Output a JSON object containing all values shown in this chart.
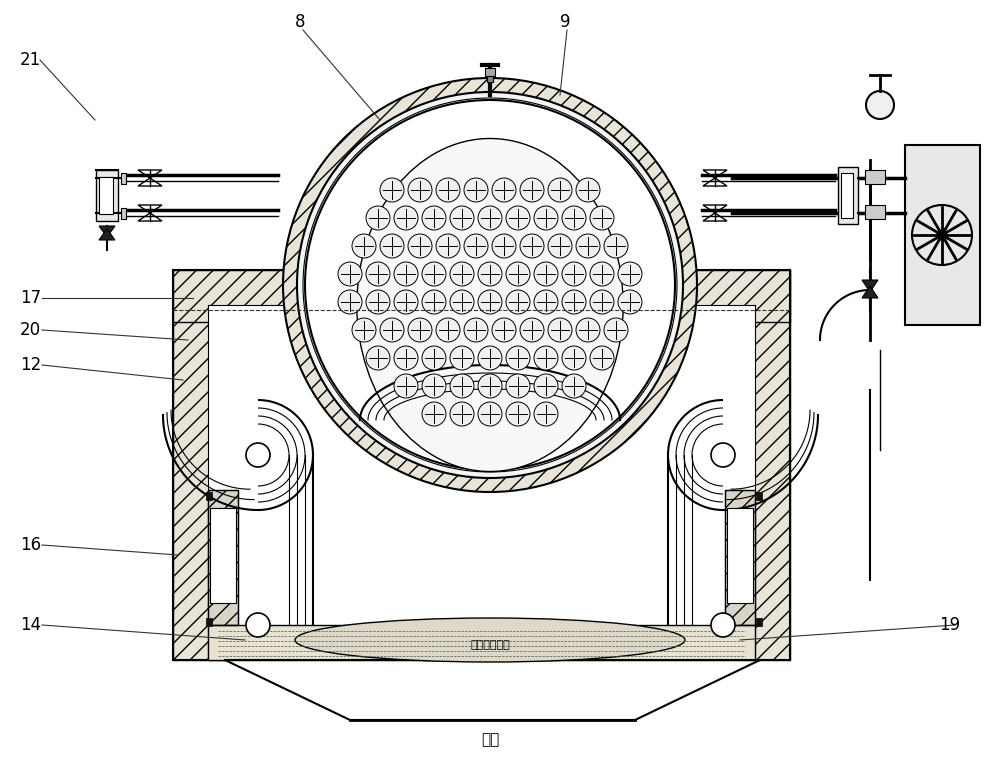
{
  "bg_color": "#ffffff",
  "line_color": "#000000",
  "figsize": [
    10.0,
    7.59
  ],
  "dpi": 100,
  "label_texts": {
    "refractory": "耗火砂密封层",
    "base": "底座"
  }
}
